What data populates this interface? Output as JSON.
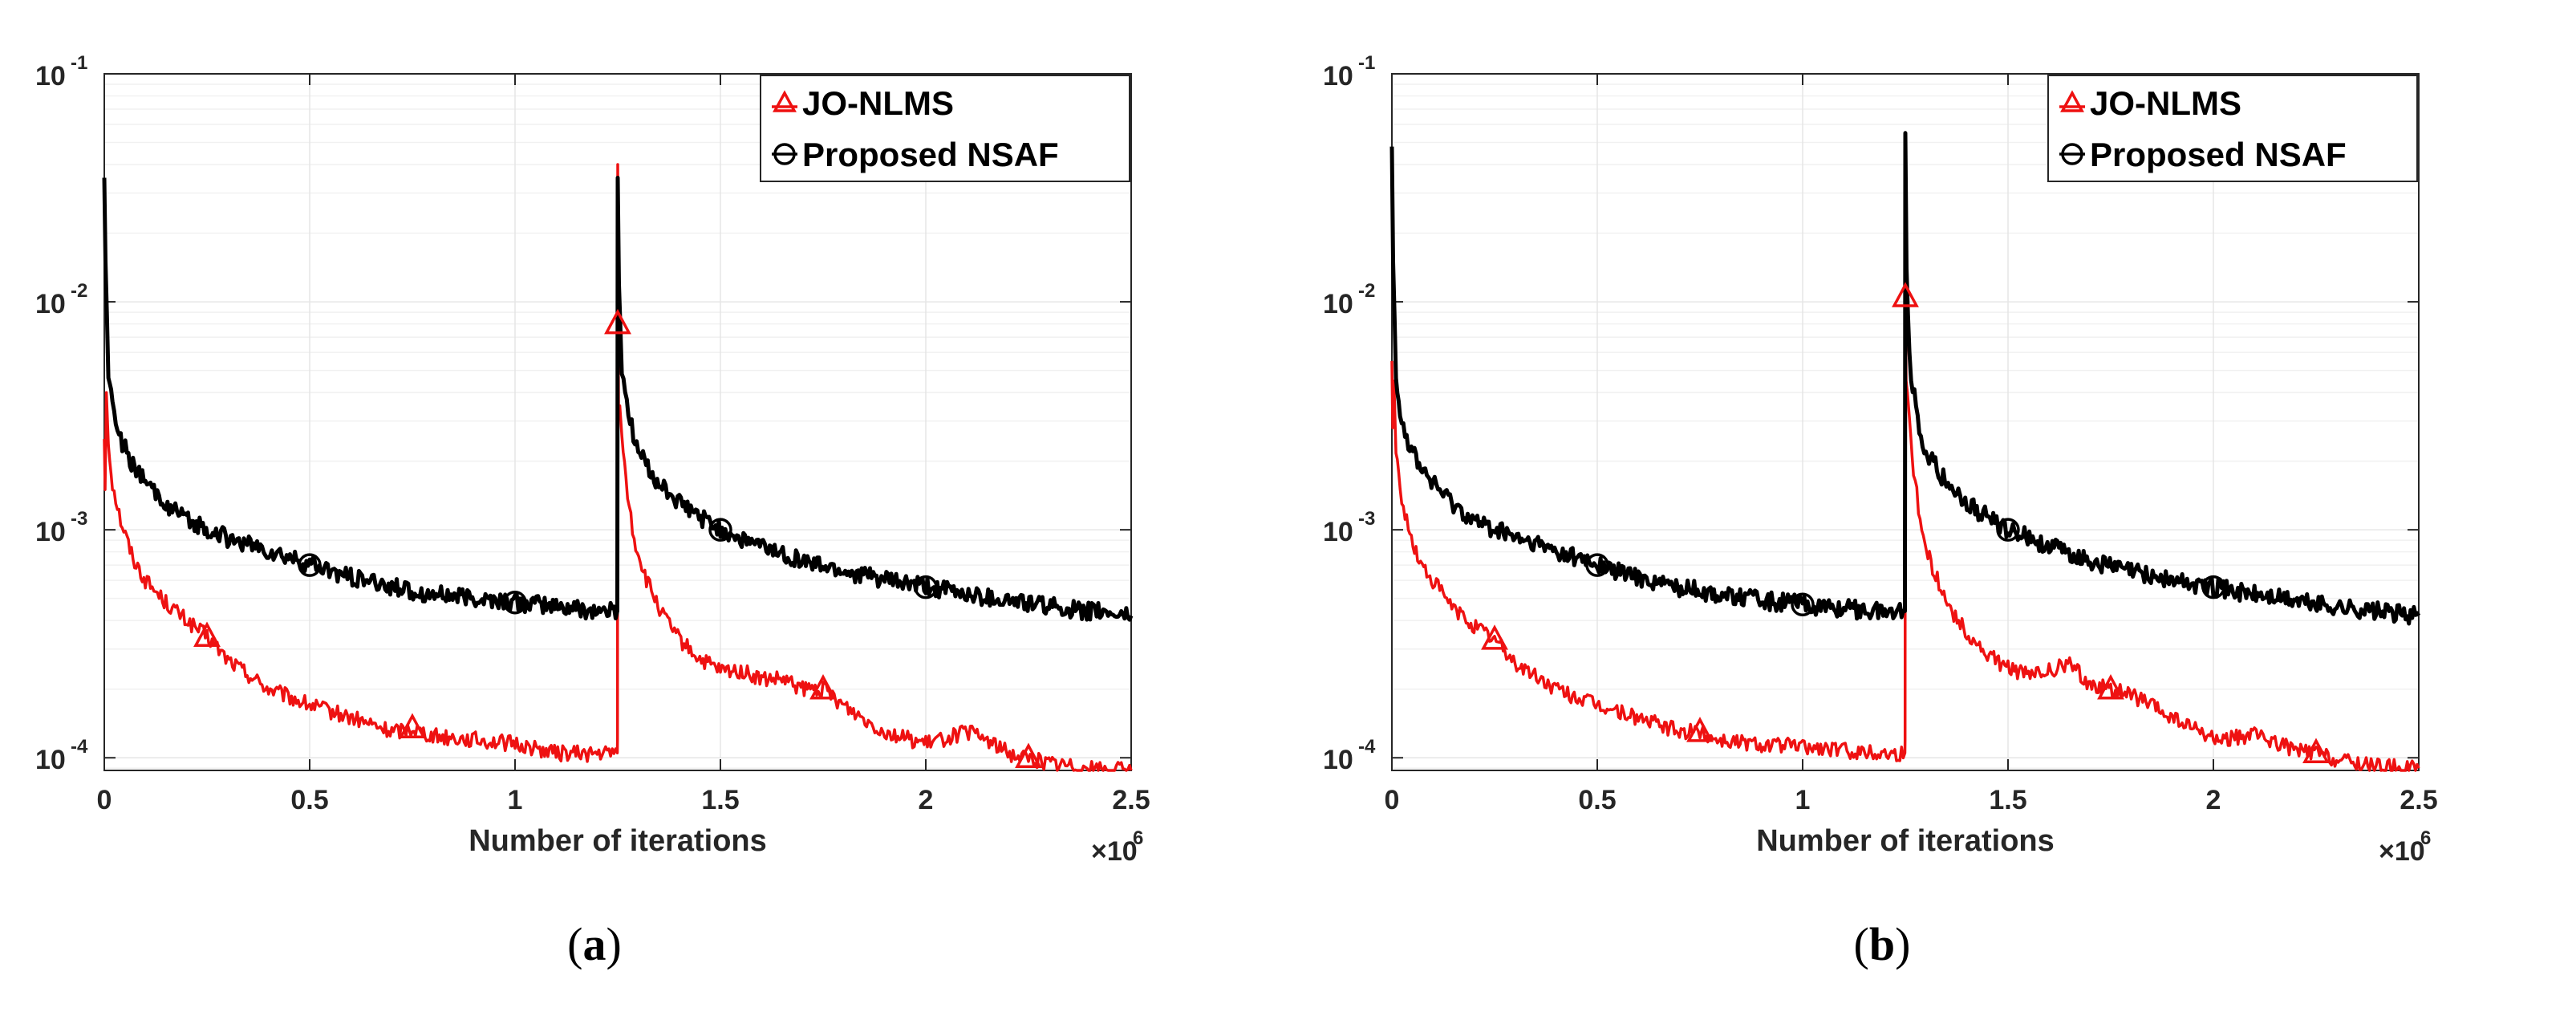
{
  "colors": {
    "jo_nlms": "#ee1111",
    "nsaf": "#000000",
    "grid": "#e6e6e6",
    "axis": "#262626"
  },
  "chart_data": [
    {
      "type": "line",
      "panel": "a",
      "caption": "(a)",
      "caption_letter": "a",
      "xlabel": "Number of iterations",
      "x_scale_label": "×10",
      "x_scale_exp": "6",
      "xlim": [
        0,
        2.5
      ],
      "ylim": [
        8.8e-05,
        0.1
      ],
      "yscale": "log",
      "xticks": [
        {
          "v": 0,
          "label": "0"
        },
        {
          "v": 0.5,
          "label": "0.5"
        },
        {
          "v": 1,
          "label": "1"
        },
        {
          "v": 1.5,
          "label": "1.5"
        },
        {
          "v": 2,
          "label": "2"
        },
        {
          "v": 2.5,
          "label": "2.5"
        }
      ],
      "yticks": [
        {
          "v": 0.0001,
          "base": "10",
          "exp": "-4"
        },
        {
          "v": 0.001,
          "base": "10",
          "exp": "-3"
        },
        {
          "v": 0.01,
          "base": "10",
          "exp": "-2"
        },
        {
          "v": 0.1,
          "base": "10",
          "exp": "-1"
        }
      ],
      "legend": {
        "position": "top-right",
        "entries": [
          "JO-NLMS",
          "Proposed NSAF"
        ]
      },
      "series": [
        {
          "name": "JO-NLMS",
          "marker": "triangle",
          "x": [
            0,
            0.002,
            0.005,
            0.01,
            0.02,
            0.04,
            0.07,
            0.1,
            0.15,
            0.2,
            0.25,
            0.3,
            0.4,
            0.5,
            0.6,
            0.7,
            0.75,
            0.8,
            0.9,
            1.0,
            1.1,
            1.2,
            1.249,
            1.2495,
            1.25,
            1.252,
            1.255,
            1.26,
            1.27,
            1.29,
            1.32,
            1.36,
            1.4,
            1.45,
            1.5,
            1.55,
            1.6,
            1.65,
            1.7,
            1.75,
            1.8,
            1.9,
            2.0,
            2.1,
            2.15,
            2.2,
            2.25,
            2.3,
            2.4,
            2.5
          ],
          "y": [
            0.0025,
            0.0015,
            0.004,
            0.0024,
            0.0016,
            0.0011,
            0.00075,
            0.0006,
            0.00048,
            0.0004,
            0.00034,
            0.00027,
            0.0002,
            0.00017,
            0.00015,
            0.00013,
            0.000135,
            0.000125,
            0.00012,
            0.000115,
            0.000105,
            0.000104,
            0.000105,
            0.00012,
            0.04,
            0.0035,
            0.0035,
            0.0028,
            0.0016,
            0.0009,
            0.0006,
            0.00042,
            0.00033,
            0.00027,
            0.00024,
            0.00024,
            0.00022,
            0.00022,
            0.0002,
            0.0002,
            0.00017,
            0.00013,
            0.000115,
            0.00013,
            0.00012,
            0.000105,
            0.0001,
            9.5e-05,
            9e-05,
            8.8e-05
          ],
          "markers_x": [
            0.25,
            0.75,
            1.25,
            1.75,
            2.25
          ],
          "markers_y": [
            0.00034,
            0.000135,
            0.008,
            0.0002,
            0.0001
          ]
        },
        {
          "name": "Proposed NSAF",
          "marker": "circle",
          "x": [
            0,
            0.003,
            0.01,
            0.02,
            0.04,
            0.07,
            0.1,
            0.15,
            0.2,
            0.3,
            0.4,
            0.5,
            0.6,
            0.7,
            0.8,
            0.9,
            1.0,
            1.1,
            1.2,
            1.249,
            1.25,
            1.253,
            1.26,
            1.28,
            1.3,
            1.35,
            1.4,
            1.5,
            1.6,
            1.7,
            1.8,
            1.9,
            2.0,
            2.1,
            2.2,
            2.3,
            2.4,
            2.5
          ],
          "y": [
            0.035,
            0.015,
            0.005,
            0.0035,
            0.0025,
            0.0019,
            0.0016,
            0.0013,
            0.0011,
            0.00092,
            0.0008,
            0.0007,
            0.00062,
            0.00056,
            0.00052,
            0.0005,
            0.00048,
            0.00046,
            0.00044,
            0.00044,
            0.035,
            0.012,
            0.005,
            0.003,
            0.0022,
            0.0016,
            0.0013,
            0.001,
            0.00085,
            0.00073,
            0.00066,
            0.0006,
            0.00056,
            0.00052,
            0.00049,
            0.00046,
            0.00044,
            0.00042
          ],
          "markers_x": [
            0.5,
            1.0,
            1.5,
            2.0
          ],
          "markers_y": [
            0.0007,
            0.00048,
            0.001,
            0.00056
          ]
        }
      ]
    },
    {
      "type": "line",
      "panel": "b",
      "caption": "(b)",
      "caption_letter": "b",
      "xlabel": "Number of iterations",
      "x_scale_label": "×10",
      "x_scale_exp": "6",
      "xlim": [
        0,
        2.5
      ],
      "ylim": [
        8.8e-05,
        0.1
      ],
      "yscale": "log",
      "xticks": [
        {
          "v": 0,
          "label": "0"
        },
        {
          "v": 0.5,
          "label": "0.5"
        },
        {
          "v": 1,
          "label": "1"
        },
        {
          "v": 1.5,
          "label": "1.5"
        },
        {
          "v": 2,
          "label": "2"
        },
        {
          "v": 2.5,
          "label": "2.5"
        }
      ],
      "yticks": [
        {
          "v": 0.0001,
          "base": "10",
          "exp": "-4"
        },
        {
          "v": 0.001,
          "base": "10",
          "exp": "-3"
        },
        {
          "v": 0.01,
          "base": "10",
          "exp": "-2"
        },
        {
          "v": 0.1,
          "base": "10",
          "exp": "-1"
        }
      ],
      "legend": {
        "position": "top-right",
        "entries": [
          "JO-NLMS",
          "Proposed NSAF"
        ]
      },
      "series": [
        {
          "name": "JO-NLMS",
          "marker": "triangle",
          "x": [
            0,
            0.002,
            0.005,
            0.01,
            0.02,
            0.04,
            0.07,
            0.1,
            0.15,
            0.2,
            0.25,
            0.3,
            0.4,
            0.5,
            0.6,
            0.7,
            0.75,
            0.8,
            0.9,
            1.0,
            1.1,
            1.2,
            1.249,
            1.2495,
            1.25,
            1.252,
            1.255,
            1.26,
            1.27,
            1.29,
            1.32,
            1.36,
            1.4,
            1.45,
            1.5,
            1.55,
            1.6,
            1.65,
            1.7,
            1.75,
            1.8,
            1.9,
            2.0,
            2.1,
            2.15,
            2.2,
            2.25,
            2.3,
            2.4,
            2.5
          ],
          "y": [
            0.0055,
            0.0028,
            0.0045,
            0.0022,
            0.0015,
            0.001,
            0.0007,
            0.0006,
            0.00045,
            0.00038,
            0.00033,
            0.00026,
            0.0002,
            0.00017,
            0.00015,
            0.00013,
            0.00013,
            0.00012,
            0.000115,
            0.000112,
            0.000108,
            0.000105,
            0.000105,
            0.00012,
            0.011,
            0.0045,
            0.004,
            0.003,
            0.0018,
            0.001,
            0.00065,
            0.00045,
            0.00035,
            0.00028,
            0.00025,
            0.00023,
            0.00024,
            0.00026,
            0.00021,
            0.0002,
            0.00019,
            0.00015,
            0.00012,
            0.000125,
            0.000118,
            0.000108,
            0.000105,
            9.8e-05,
            9.2e-05,
            9e-05
          ],
          "markers_x": [
            0.25,
            0.75,
            1.25,
            1.75,
            2.25
          ],
          "markers_y": [
            0.00033,
            0.00013,
            0.0105,
            0.0002,
            0.000105
          ]
        },
        {
          "name": "Proposed NSAF",
          "marker": "circle",
          "x": [
            0,
            0.003,
            0.01,
            0.02,
            0.04,
            0.07,
            0.1,
            0.15,
            0.2,
            0.3,
            0.4,
            0.5,
            0.6,
            0.7,
            0.8,
            0.9,
            1.0,
            1.1,
            1.2,
            1.249,
            1.25,
            1.253,
            1.26,
            1.28,
            1.3,
            1.35,
            1.4,
            1.5,
            1.6,
            1.7,
            1.8,
            1.9,
            2.0,
            2.1,
            2.2,
            2.3,
            2.4,
            2.5
          ],
          "y": [
            0.048,
            0.015,
            0.005,
            0.0033,
            0.0024,
            0.0019,
            0.0016,
            0.0013,
            0.0011,
            0.00092,
            0.0008,
            0.0007,
            0.00062,
            0.00056,
            0.00052,
            0.00049,
            0.00047,
            0.00045,
            0.00044,
            0.00044,
            0.055,
            0.014,
            0.0055,
            0.003,
            0.0022,
            0.0016,
            0.0013,
            0.001,
            0.00085,
            0.00073,
            0.00066,
            0.0006,
            0.00056,
            0.00052,
            0.00049,
            0.00046,
            0.00044,
            0.00042
          ],
          "markers_x": [
            0.5,
            1.0,
            1.5,
            2.0
          ],
          "markers_y": [
            0.0007,
            0.00047,
            0.001,
            0.00056
          ]
        }
      ]
    }
  ]
}
